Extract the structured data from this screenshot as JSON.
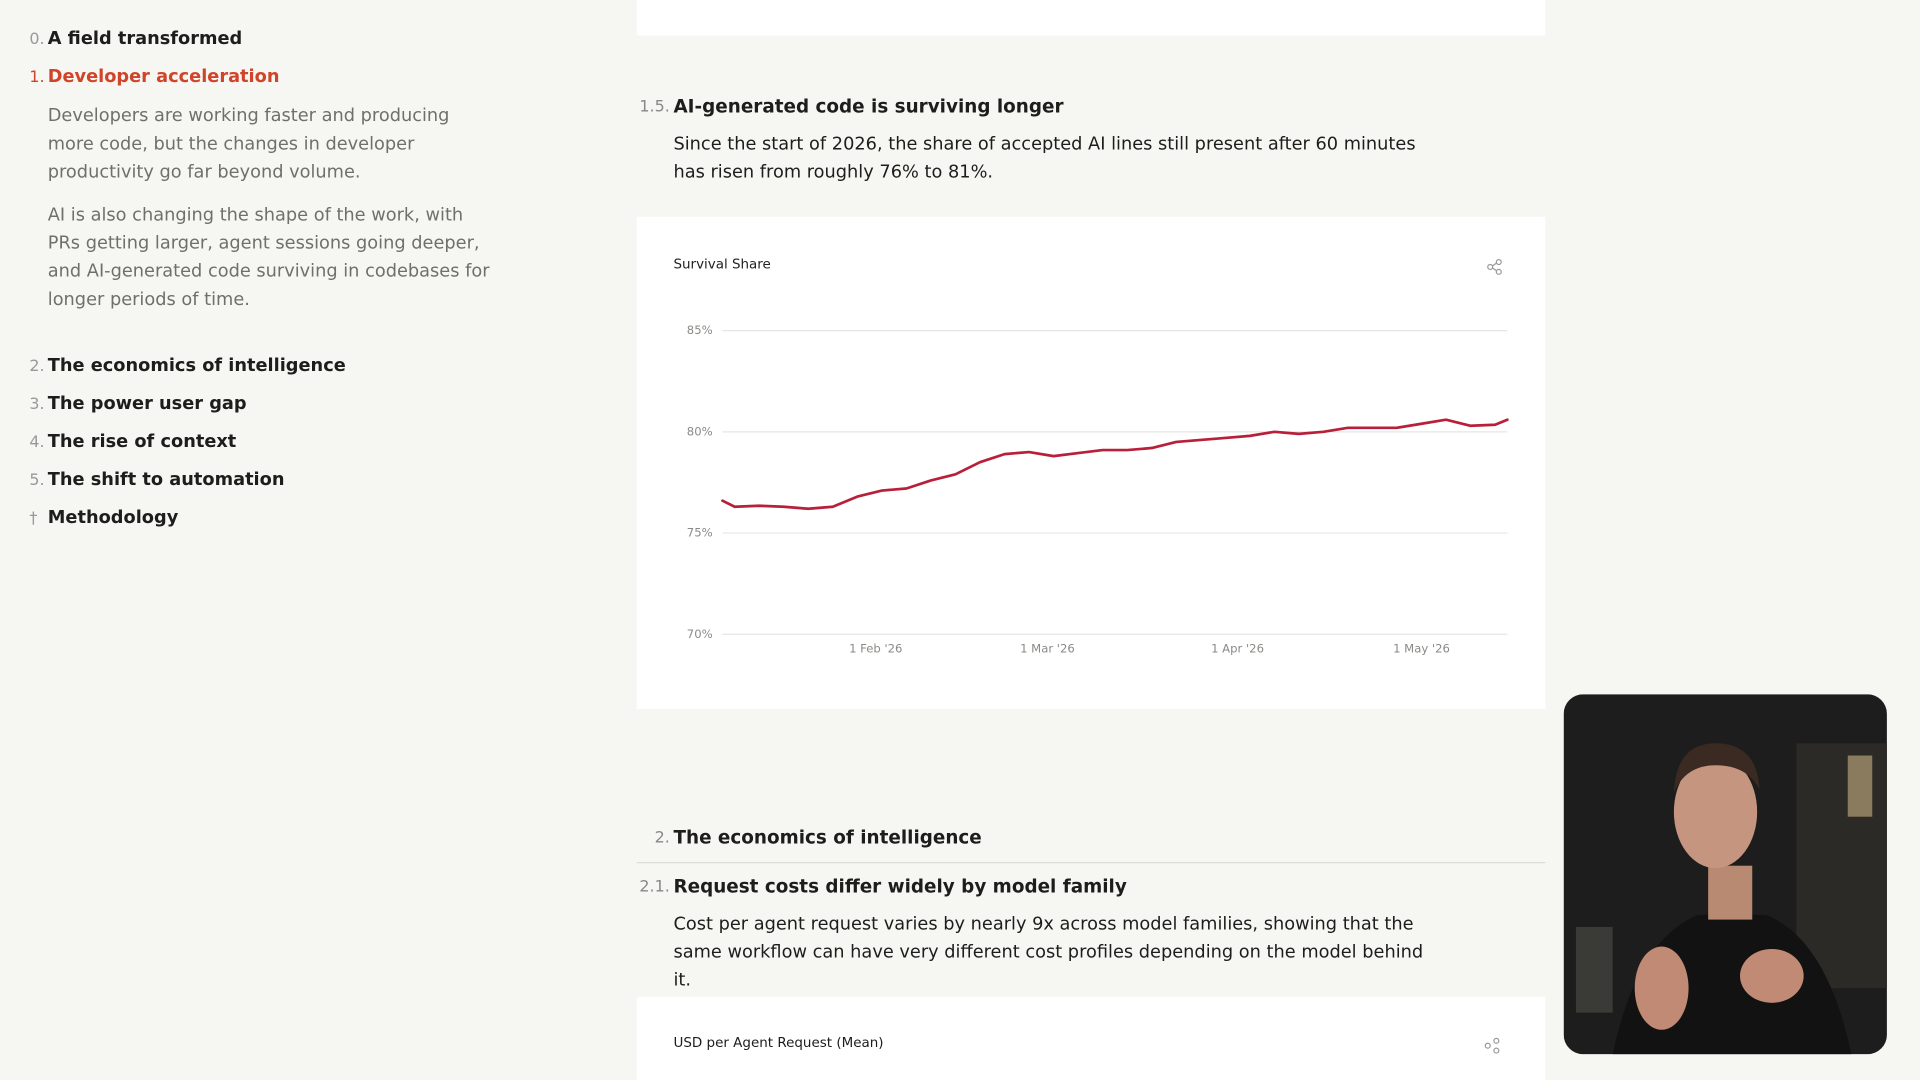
{
  "sidebar": [
    {
      "number": "0.",
      "title": "A field transformed"
    },
    {
      "number": "1.",
      "title": "Developer acceleration",
      "paragraphs": [
        "Developers are working faster and producing more code, but the changes in developer productivity go far beyond volume.",
        "AI is also changing the shape of the work, with PRs getting larger, agent sessions going deeper, and AI-generated code surviving in codebases for longer periods of time."
      ]
    },
    {
      "number": "2.",
      "title": "The economics of intelligence"
    },
    {
      "number": "3.",
      "title": "The power user gap"
    },
    {
      "number": "4.",
      "title": "The rise of context"
    },
    {
      "number": "5.",
      "title": "The shift to automation"
    },
    {
      "number": "†",
      "title": "Methodology"
    }
  ],
  "sections": [
    {
      "number": "1.5.",
      "title": "AI-generated code is surviving longer",
      "body": "Since the start of 2026, the share of accepted AI lines still present after 60 minutes has risen from roughly 76% to 81%."
    },
    {
      "number": "2.",
      "title": "The economics of intelligence"
    },
    {
      "number": "2.1.",
      "title": "Request costs differ widely by model family",
      "body": "Cost per agent request varies by nearly 9x across model families, showing that the same workflow can have very different cost profiles depending on the model behind it.",
      "chart_title": "USD per Agent Request (Mean)"
    }
  ],
  "chart_data": {
    "type": "line",
    "title": "Survival Share",
    "color": "#b8203a",
    "grid": true,
    "x": [
      "2026-01-07",
      "2026-01-09",
      "2026-01-13",
      "2026-01-17",
      "2026-01-21",
      "2026-01-25",
      "2026-01-29",
      "2026-02-02",
      "2026-02-06",
      "2026-02-10",
      "2026-02-14",
      "2026-02-18",
      "2026-02-22",
      "2026-02-26",
      "2026-03-02",
      "2026-03-06",
      "2026-03-10",
      "2026-03-14",
      "2026-03-18",
      "2026-03-22",
      "2026-03-26",
      "2026-03-30",
      "2026-04-03",
      "2026-04-07",
      "2026-04-11",
      "2026-04-15",
      "2026-04-19",
      "2026-04-23",
      "2026-04-27",
      "2026-05-01",
      "2026-05-05",
      "2026-05-09",
      "2026-05-13",
      "2026-05-15"
    ],
    "values": [
      76.6,
      76.3,
      76.35,
      76.3,
      76.2,
      76.3,
      76.8,
      77.1,
      77.2,
      77.6,
      77.9,
      78.5,
      78.9,
      79.0,
      78.8,
      78.95,
      79.1,
      79.1,
      79.2,
      79.5,
      79.6,
      79.7,
      79.8,
      80.0,
      79.9,
      80.0,
      80.2,
      80.2,
      80.2,
      80.4,
      80.6,
      80.3,
      80.35,
      80.6
    ],
    "xlim": [
      "2026-01-07",
      "2026-05-15"
    ],
    "xticks": [
      {
        "value": "2026-02-01",
        "label": "1 Feb '26"
      },
      {
        "value": "2026-03-01",
        "label": "1 Mar '26"
      },
      {
        "value": "2026-04-01",
        "label": "1 Apr '26"
      },
      {
        "value": "2026-05-01",
        "label": "1 May '26"
      }
    ],
    "ylim": [
      70,
      85
    ],
    "yticks": [
      {
        "value": 70,
        "label": "70%"
      },
      {
        "value": 75,
        "label": "75%"
      },
      {
        "value": 80,
        "label": "80%"
      },
      {
        "value": 85,
        "label": "85%"
      }
    ]
  }
}
